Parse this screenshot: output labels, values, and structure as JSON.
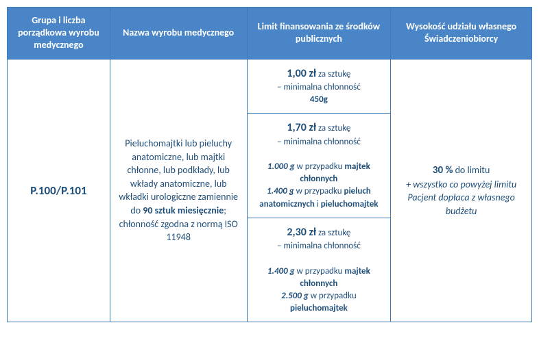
{
  "colors": {
    "header_bg": "#4a86c7",
    "header_text": "#ffffff",
    "border": "#3e7ab8",
    "body_text": "#1f4e79"
  },
  "headers": {
    "col0": "Grupa i liczba porządkowa wyrobu medycznego",
    "col1": "Nazwa wyrobu medycznego",
    "col2": "Limit finansowania ze środków publicznych",
    "col3": "Wysokość udziału własnego Świadczeniobiorcy"
  },
  "row": {
    "code": "P.100/P.101",
    "desc_pre": "Pieluchomajtki lub pieluchy anatomiczne, lub majtki chłonne, lub podkłady, lub wkłady anatomiczne, lub wkładki urologiczne zamiennie do ",
    "desc_bold": "90 sztuk miesięcznie",
    "desc_post": "; chłonność zgodna z normą ISO 11948",
    "limits": [
      {
        "price": "1,00 zł",
        "suffix": " za sztukę",
        "line2": "– minimalna chłonność",
        "line3_bold": "450g"
      },
      {
        "price": "1,70 zł",
        "suffix": " za sztukę",
        "line2": "– minimalna chłonność",
        "detail": [
          {
            "val": "1.000 g",
            "txt": " w przypadku ",
            "prod": "majtek chłonnych"
          },
          {
            "val": "1.400 g",
            "txt": " w przypadku ",
            "prod": "pieluch anatomicznych",
            "and": " i ",
            "prod2": "pieluchomajtek"
          }
        ]
      },
      {
        "price": "2,30 zł",
        "suffix": " za sztukę",
        "line2": "– minimalna chłonność",
        "detail": [
          {
            "val": "1.400 g",
            "txt": " w przypadku ",
            "prod": "majtek chłonnych"
          },
          {
            "val": "2.500 g",
            "txt": " w przypadku ",
            "prod": "pieluchomajtek"
          }
        ]
      }
    ],
    "share": {
      "main": "30 %",
      "main_suffix": " do limitu",
      "note": "+ wszystko co powyżej limitu Pacjent dopłaca z własnego budżetu"
    }
  }
}
